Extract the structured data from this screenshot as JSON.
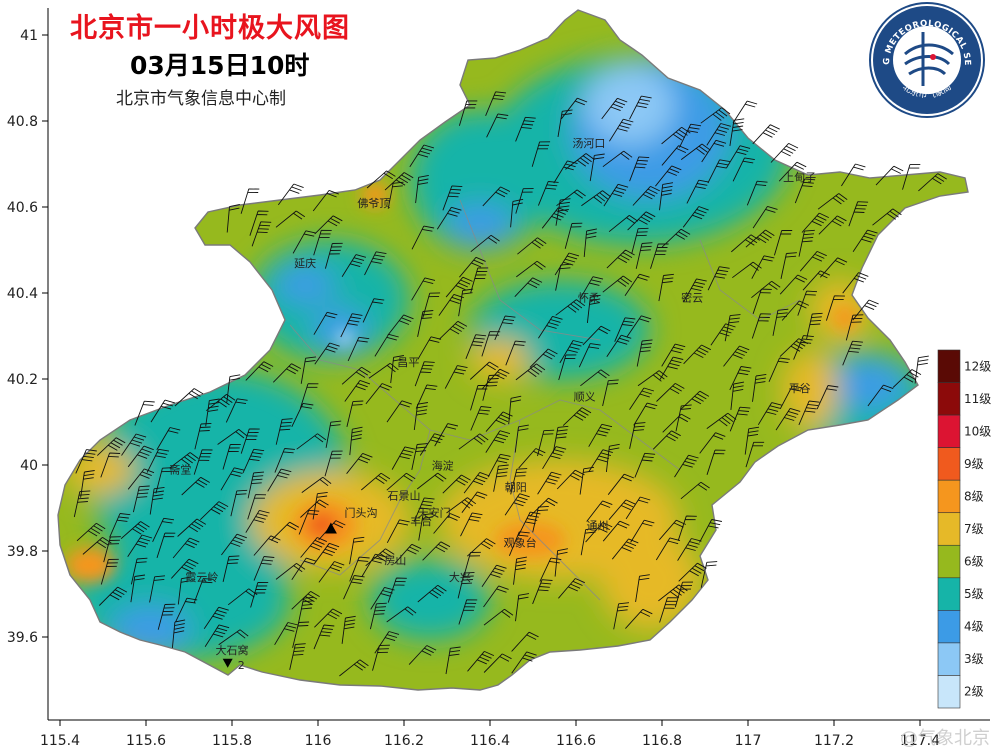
{
  "header": {
    "title": "北京市一小时极大风图",
    "datetime": "03月15日10时",
    "credit": "北京市气象信息中心制"
  },
  "logo": {
    "ring_text": "BEIJING METEOROLOGICAL SERVICE",
    "inner_text": "北京市气象局"
  },
  "axes": {
    "x_ticks": [
      "115.4",
      "115.6",
      "115.8",
      "116",
      "116.2",
      "116.4",
      "116.6",
      "116.8",
      "117",
      "117.2",
      "117.4"
    ],
    "y_ticks": [
      "41",
      "40.8",
      "40.6",
      "40.4",
      "40.2",
      "40",
      "39.8",
      "39.6"
    ]
  },
  "places": [
    {
      "name": "汤河口",
      "lon": 116.63,
      "lat": 40.74
    },
    {
      "name": "上甸子",
      "lon": 117.12,
      "lat": 40.66
    },
    {
      "name": "佛爷顶",
      "lon": 116.13,
      "lat": 40.6
    },
    {
      "name": "延庆",
      "lon": 115.97,
      "lat": 40.46
    },
    {
      "name": "怀柔",
      "lon": 116.63,
      "lat": 40.38
    },
    {
      "name": "密云",
      "lon": 116.87,
      "lat": 40.38
    },
    {
      "name": "昌平",
      "lon": 116.21,
      "lat": 40.23
    },
    {
      "name": "平谷",
      "lon": 117.12,
      "lat": 40.17
    },
    {
      "name": "顺义",
      "lon": 116.62,
      "lat": 40.15
    },
    {
      "name": "斋堂",
      "lon": 115.68,
      "lat": 39.98
    },
    {
      "name": "海淀",
      "lon": 116.29,
      "lat": 39.99
    },
    {
      "name": "石景山",
      "lon": 116.2,
      "lat": 39.92
    },
    {
      "name": "朝阳",
      "lon": 116.46,
      "lat": 39.94
    },
    {
      "name": "门头沟",
      "lon": 116.1,
      "lat": 39.88
    },
    {
      "name": "天安门",
      "lon": 116.27,
      "lat": 39.88
    },
    {
      "name": "通州",
      "lon": 116.65,
      "lat": 39.85
    },
    {
      "name": "霞云岭",
      "lon": 115.73,
      "lat": 39.73
    },
    {
      "name": "丰台",
      "lon": 116.24,
      "lat": 39.86
    },
    {
      "name": "观象台",
      "lon": 116.47,
      "lat": 39.81
    },
    {
      "name": "房山",
      "lon": 116.18,
      "lat": 39.77
    },
    {
      "name": "大兴",
      "lon": 116.33,
      "lat": 39.73
    },
    {
      "name": "大石窝",
      "lon": 115.8,
      "lat": 39.56
    }
  ],
  "markers": [
    {
      "label": "",
      "lon": 116.03,
      "lat": 39.85,
      "symbol": "up-triangle"
    },
    {
      "label": "2",
      "lon": 115.79,
      "lat": 39.54,
      "symbol": "down-triangle"
    }
  ],
  "legend": {
    "levels": [
      {
        "label": "12级",
        "color": "#5a0a05"
      },
      {
        "label": "11级",
        "color": "#8c0a0a"
      },
      {
        "label": "10级",
        "color": "#dc1432"
      },
      {
        "label": "9级",
        "color": "#f05a1e"
      },
      {
        "label": "8级",
        "color": "#f5961e"
      },
      {
        "label": "7级",
        "color": "#e6b928"
      },
      {
        "label": "6级",
        "color": "#96b91e"
      },
      {
        "label": "5级",
        "color": "#16b4a8"
      },
      {
        "label": "4级",
        "color": "#3c9be6"
      },
      {
        "label": "3级",
        "color": "#8cc8f5"
      },
      {
        "label": "2级",
        "color": "#c8e6fa"
      }
    ]
  },
  "watermark": "@气象北京"
}
